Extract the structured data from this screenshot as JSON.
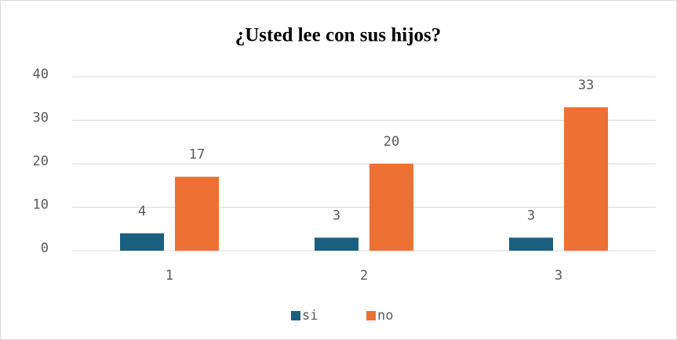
{
  "chart_data": {
    "type": "bar",
    "title": "¿Usted lee con sus hijos?",
    "categories": [
      "1",
      "2",
      "3"
    ],
    "series": [
      {
        "name": "si",
        "color": "#1b5f80",
        "values": [
          4,
          3,
          3
        ]
      },
      {
        "name": "no",
        "color": "#ed7133",
        "values": [
          17,
          20,
          33
        ]
      }
    ],
    "ylim": [
      0,
      40
    ],
    "yticks": [
      0,
      10,
      20,
      30,
      40
    ],
    "grid": true,
    "legend": "bottom"
  }
}
